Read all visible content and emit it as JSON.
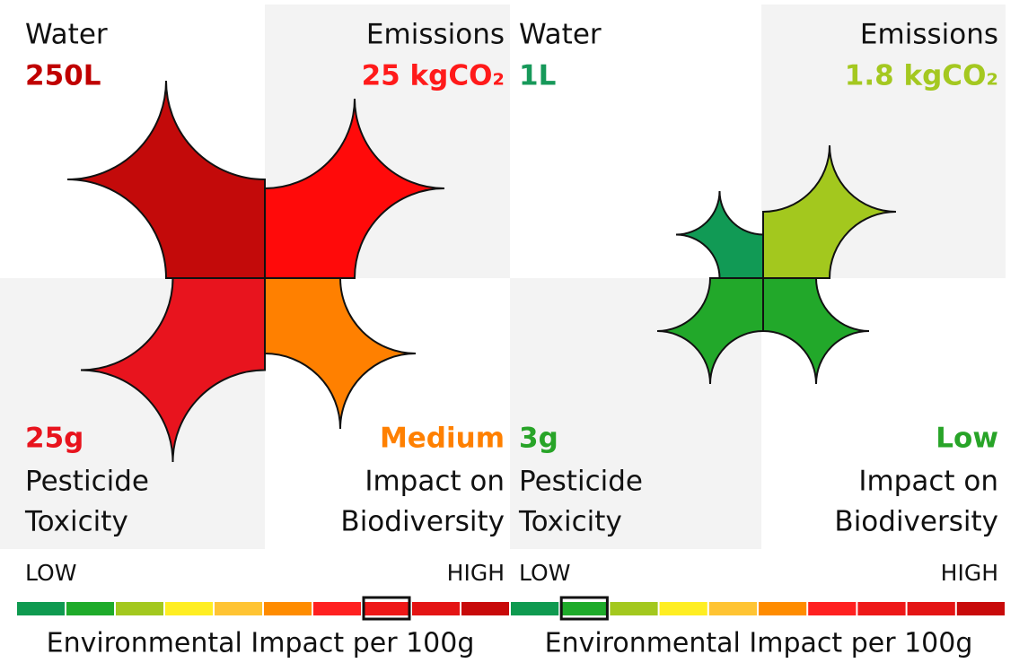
{
  "panels": [
    {
      "water_label": "Water",
      "water_value": "250L",
      "emissions_label": "Emissions",
      "emissions_value": "25 kgCO₂",
      "pesticide_value": "25g",
      "pesticide_label": [
        "Pesticide",
        "Toxicity"
      ],
      "biodiversity_value": "Medium",
      "biodiversity_label": [
        "Impact on",
        "Biodiversity"
      ],
      "scale_low": "LOW",
      "scale_high": "HIGH",
      "caption": "Environmental Impact per 100g"
    },
    {
      "water_label": "Water",
      "water_value": "1L",
      "emissions_label": "Emissions",
      "emissions_value": "1.8 kgCO₂",
      "pesticide_value": "3g",
      "pesticide_label": [
        "Pesticide",
        "Toxicity"
      ],
      "biodiversity_value": "Low",
      "biodiversity_label": [
        "Impact on",
        "Biodiversity"
      ],
      "scale_low": "LOW",
      "scale_high": "HIGH",
      "caption": "Environmental Impact per 100g"
    }
  ]
}
